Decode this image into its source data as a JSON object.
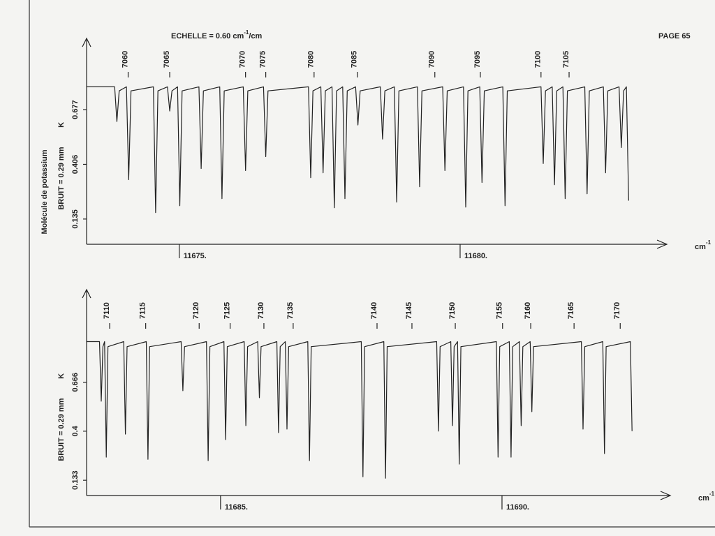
{
  "header": {
    "scale_text": "ECHELLE = 0.60 cm",
    "scale_exp": "-1",
    "scale_unit": "/cm",
    "page": "PAGE 65",
    "molecule": "Molécule de potassium"
  },
  "chart_data": [
    {
      "type": "line",
      "y_label": "BRUIT = 0.29 mm",
      "y_symbol": "K",
      "x_unit": "cm",
      "x_unit_exp": "-1",
      "xlim": [
        11673.35,
        11683.68
      ],
      "ylim": [
        0.01,
        1.03
      ],
      "xticks": [
        {
          "value": 11675,
          "label": "11675."
        },
        {
          "value": 11680,
          "label": "11680."
        }
      ],
      "yticks": [
        0.135,
        0.406,
        0.677
      ],
      "line_labels": {
        "x": [
          11674.09,
          11674.83,
          11676.18,
          11676.54,
          11677.4,
          11678.17,
          11679.55,
          11680.36,
          11681.44,
          11681.94
        ],
        "labels": [
          "7060",
          "7065",
          "7070",
          "7075",
          "7080",
          "7085",
          "7090",
          "7095",
          "7100",
          "7105"
        ]
      },
      "x": [
        11673.35,
        11673.85,
        11673.89,
        11673.93,
        11674.06,
        11674.1,
        11674.14,
        11674.54,
        11674.58,
        11674.62,
        11674.79,
        11674.83,
        11674.87,
        11674.97,
        11675.01,
        11675.05,
        11675.35,
        11675.39,
        11675.43,
        11675.72,
        11675.76,
        11675.8,
        11676.14,
        11676.18,
        11676.22,
        11676.5,
        11676.54,
        11676.58,
        11677.3,
        11677.34,
        11677.38,
        11677.52,
        11677.56,
        11677.6,
        11677.72,
        11677.76,
        11677.8,
        11677.91,
        11677.95,
        11677.99,
        11678.14,
        11678.18,
        11678.22,
        11678.58,
        11678.62,
        11678.66,
        11678.83,
        11678.87,
        11678.91,
        11679.24,
        11679.28,
        11679.32,
        11679.69,
        11679.73,
        11679.77,
        11680.06,
        11680.1,
        11680.14,
        11680.35,
        11680.39,
        11680.43,
        11680.76,
        11680.8,
        11680.84,
        11681.44,
        11681.48,
        11681.52,
        11681.64,
        11681.68,
        11681.72,
        11681.83,
        11681.87,
        11681.91,
        11682.22,
        11682.26,
        11682.3,
        11682.55,
        11682.59,
        11682.63,
        11682.83,
        11682.87,
        11682.91,
        11682.96,
        11683.0
      ],
      "series": [
        {
          "color": "#222222",
          "values": [
            0.79,
            0.79,
            0.618,
            0.77,
            0.79,
            0.33,
            0.77,
            0.79,
            0.167,
            0.77,
            0.79,
            0.67,
            0.77,
            0.79,
            0.201,
            0.77,
            0.79,
            0.385,
            0.77,
            0.79,
            0.236,
            0.77,
            0.79,
            0.375,
            0.77,
            0.79,
            0.444,
            0.77,
            0.79,
            0.34,
            0.77,
            0.79,
            0.364,
            0.77,
            0.79,
            0.191,
            0.77,
            0.79,
            0.236,
            0.77,
            0.79,
            0.601,
            0.77,
            0.79,
            0.531,
            0.77,
            0.79,
            0.219,
            0.77,
            0.79,
            0.295,
            0.77,
            0.79,
            0.375,
            0.77,
            0.79,
            0.194,
            0.77,
            0.79,
            0.316,
            0.77,
            0.79,
            0.201,
            0.77,
            0.79,
            0.41,
            0.77,
            0.79,
            0.305,
            0.77,
            0.79,
            0.236,
            0.77,
            0.79,
            0.26,
            0.77,
            0.79,
            0.364,
            0.77,
            0.79,
            0.489,
            0.77,
            0.79,
            0.226
          ]
        }
      ]
    },
    {
      "type": "line",
      "y_label": "BRUIT = 0.29 mm",
      "y_symbol": "K",
      "x_unit": "cm",
      "x_unit_exp": "-1",
      "xlim": [
        11682.62,
        11692.99
      ],
      "ylim": [
        0.05,
        1.17
      ],
      "xticks": [
        {
          "value": 11685,
          "label": "11685."
        },
        {
          "value": 11690,
          "label": "11690."
        }
      ],
      "yticks": [
        0.133,
        0.4,
        0.666
      ],
      "line_labels": {
        "x": [
          11683.03,
          11683.67,
          11684.62,
          11685.17,
          11685.77,
          11686.29,
          11687.78,
          11688.4,
          11689.17,
          11690.01,
          11690.51,
          11691.28,
          11692.1
        ],
        "labels": [
          "7110",
          "7115",
          "7120",
          "7125",
          "7130",
          "7135",
          "7140",
          "7145",
          "7150",
          "7155",
          "7160",
          "7165",
          "7170"
        ]
      },
      "x": [
        11682.62,
        11682.85,
        11682.88,
        11682.91,
        11682.94,
        11682.97,
        11683.0,
        11683.28,
        11683.31,
        11683.34,
        11683.68,
        11683.71,
        11683.74,
        11684.3,
        11684.33,
        11684.36,
        11684.75,
        11684.78,
        11684.81,
        11685.06,
        11685.09,
        11685.12,
        11685.42,
        11685.45,
        11685.48,
        11685.66,
        11685.69,
        11685.72,
        11686.0,
        11686.03,
        11686.06,
        11686.15,
        11686.18,
        11686.21,
        11686.55,
        11686.58,
        11686.61,
        11687.5,
        11687.53,
        11687.56,
        11687.9,
        11687.93,
        11687.96,
        11688.84,
        11688.87,
        11688.9,
        11689.09,
        11689.12,
        11689.15,
        11689.21,
        11689.24,
        11689.27,
        11689.9,
        11689.93,
        11689.96,
        11690.13,
        11690.16,
        11690.19,
        11690.31,
        11690.34,
        11690.37,
        11690.5,
        11690.53,
        11690.56,
        11691.41,
        11691.44,
        11691.47,
        11691.79,
        11691.82,
        11691.85,
        11692.28,
        11692.31
      ],
      "series": [
        {
          "color": "#222222",
          "values": [
            0.887,
            0.887,
            0.563,
            0.86,
            0.887,
            0.259,
            0.86,
            0.887,
            0.384,
            0.86,
            0.887,
            0.247,
            0.86,
            0.887,
            0.62,
            0.86,
            0.887,
            0.24,
            0.86,
            0.887,
            0.354,
            0.86,
            0.887,
            0.43,
            0.86,
            0.887,
            0.582,
            0.86,
            0.887,
            0.392,
            0.86,
            0.887,
            0.411,
            0.86,
            0.887,
            0.24,
            0.86,
            0.887,
            0.152,
            0.86,
            0.887,
            0.144,
            0.86,
            0.887,
            0.4,
            0.86,
            0.887,
            0.43,
            0.86,
            0.887,
            0.221,
            0.86,
            0.887,
            0.259,
            0.86,
            0.887,
            0.259,
            0.86,
            0.887,
            0.43,
            0.86,
            0.887,
            0.506,
            0.86,
            0.887,
            0.411,
            0.86,
            0.887,
            0.278,
            0.86,
            0.887,
            0.4
          ]
        }
      ]
    }
  ]
}
